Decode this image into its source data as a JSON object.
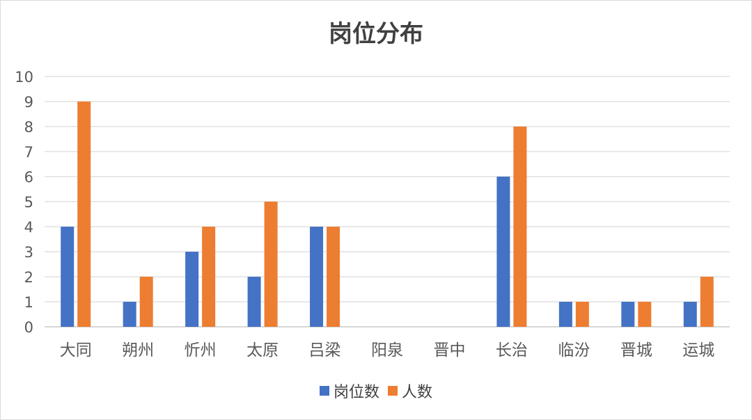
{
  "chart_data": {
    "type": "bar",
    "title": "岗位分布",
    "categories": [
      "大同",
      "朔州",
      "忻州",
      "太原",
      "吕梁",
      "阳泉",
      "晋中",
      "长治",
      "临汾",
      "晋城",
      "运城"
    ],
    "series": [
      {
        "name": "岗位数",
        "values": [
          4,
          1,
          3,
          2,
          4,
          0,
          0,
          6,
          1,
          1,
          1
        ],
        "color": "#4472c4"
      },
      {
        "name": "人数",
        "values": [
          9,
          2,
          4,
          5,
          4,
          0,
          0,
          8,
          1,
          1,
          2
        ],
        "color": "#ed7d31"
      }
    ],
    "yticks": [
      "0",
      "1",
      "2",
      "3",
      "4",
      "5",
      "6",
      "7",
      "8",
      "9",
      "10"
    ],
    "ylim": [
      0,
      10
    ],
    "grid": true,
    "legend_position": "bottom"
  }
}
